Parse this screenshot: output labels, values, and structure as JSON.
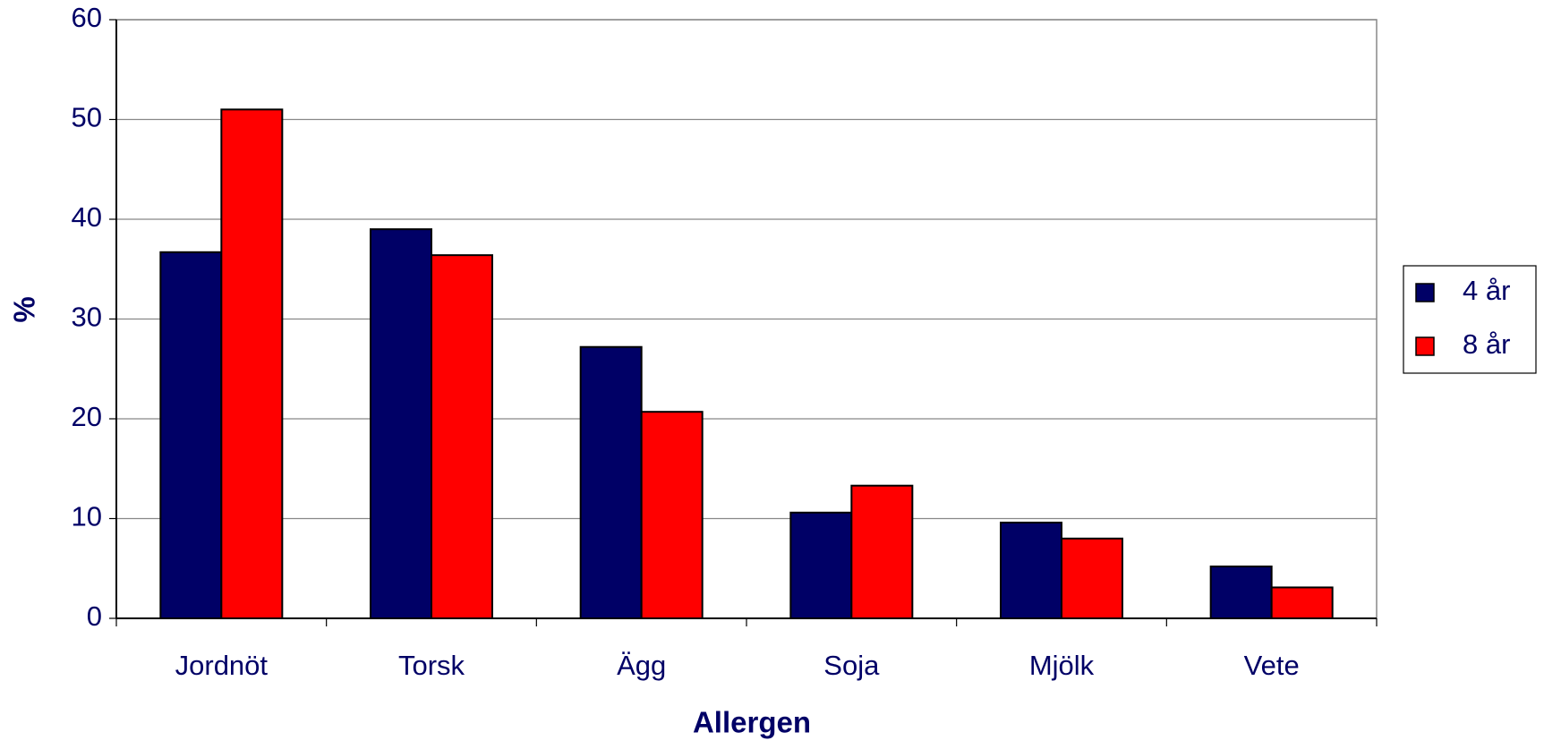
{
  "chart_data": {
    "type": "bar",
    "x_label": "Allergen",
    "y_label": "%",
    "categories": [
      "Jordnöt",
      "Torsk",
      "Ägg",
      "Soja",
      "Mjölk",
      "Vete"
    ],
    "series": [
      {
        "name": "4 år",
        "color": "#000066",
        "values": [
          36.7,
          39.0,
          27.2,
          10.6,
          9.6,
          5.2
        ]
      },
      {
        "name": "8 år",
        "color": "#ff0000",
        "values": [
          51.0,
          36.4,
          20.7,
          13.3,
          8.0,
          3.1
        ]
      }
    ],
    "ylim": [
      0,
      60
    ],
    "yticks": [
      0,
      10,
      20,
      30,
      40,
      50,
      60
    ],
    "grid": true,
    "legend": "right"
  }
}
